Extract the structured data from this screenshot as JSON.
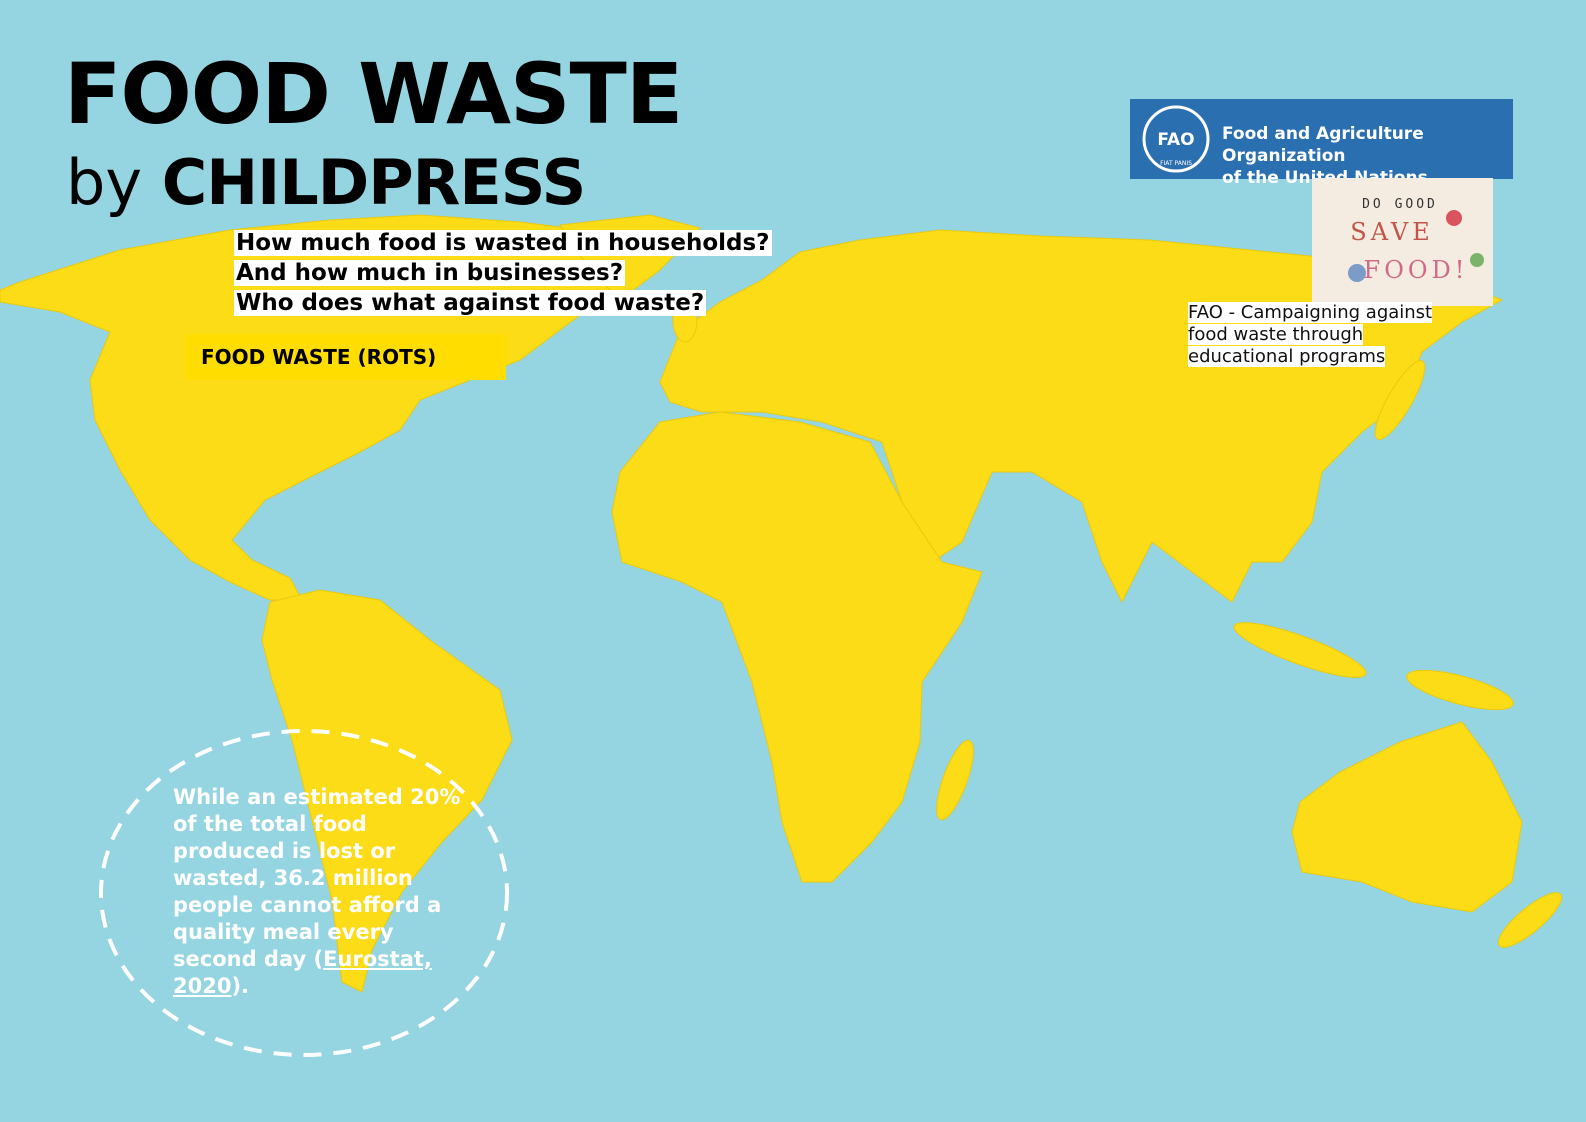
{
  "header": {
    "title": "FOOD WASTE",
    "subtitle_prefix": "by",
    "subtitle_name": "CHILDPRESS"
  },
  "questions": [
    "How much food is wasted in households?",
    "And how much in businesses?",
    "Who does what against food waste?"
  ],
  "button": {
    "label": "FOOD WASTE (ROTS)"
  },
  "logo": {
    "emblem": "FAO",
    "motto": "FIAT PANIS",
    "name_lines": [
      "Food and Agriculture Organization",
      "of the United Nations"
    ]
  },
  "campaign_image": {
    "top": "DO GOOD",
    "middle": "SAVE",
    "bottom": "FOOD!"
  },
  "caption": {
    "lines": [
      "FAO - Campaigning against",
      "food waste through",
      "educational programs"
    ]
  },
  "callout": {
    "text_before": "While an estimated 20% of the total food produced is lost or wasted, 36.2 million people cannot afford a quality meal every second day (",
    "link": "Eurostat, 2020",
    "text_after": ")."
  }
}
